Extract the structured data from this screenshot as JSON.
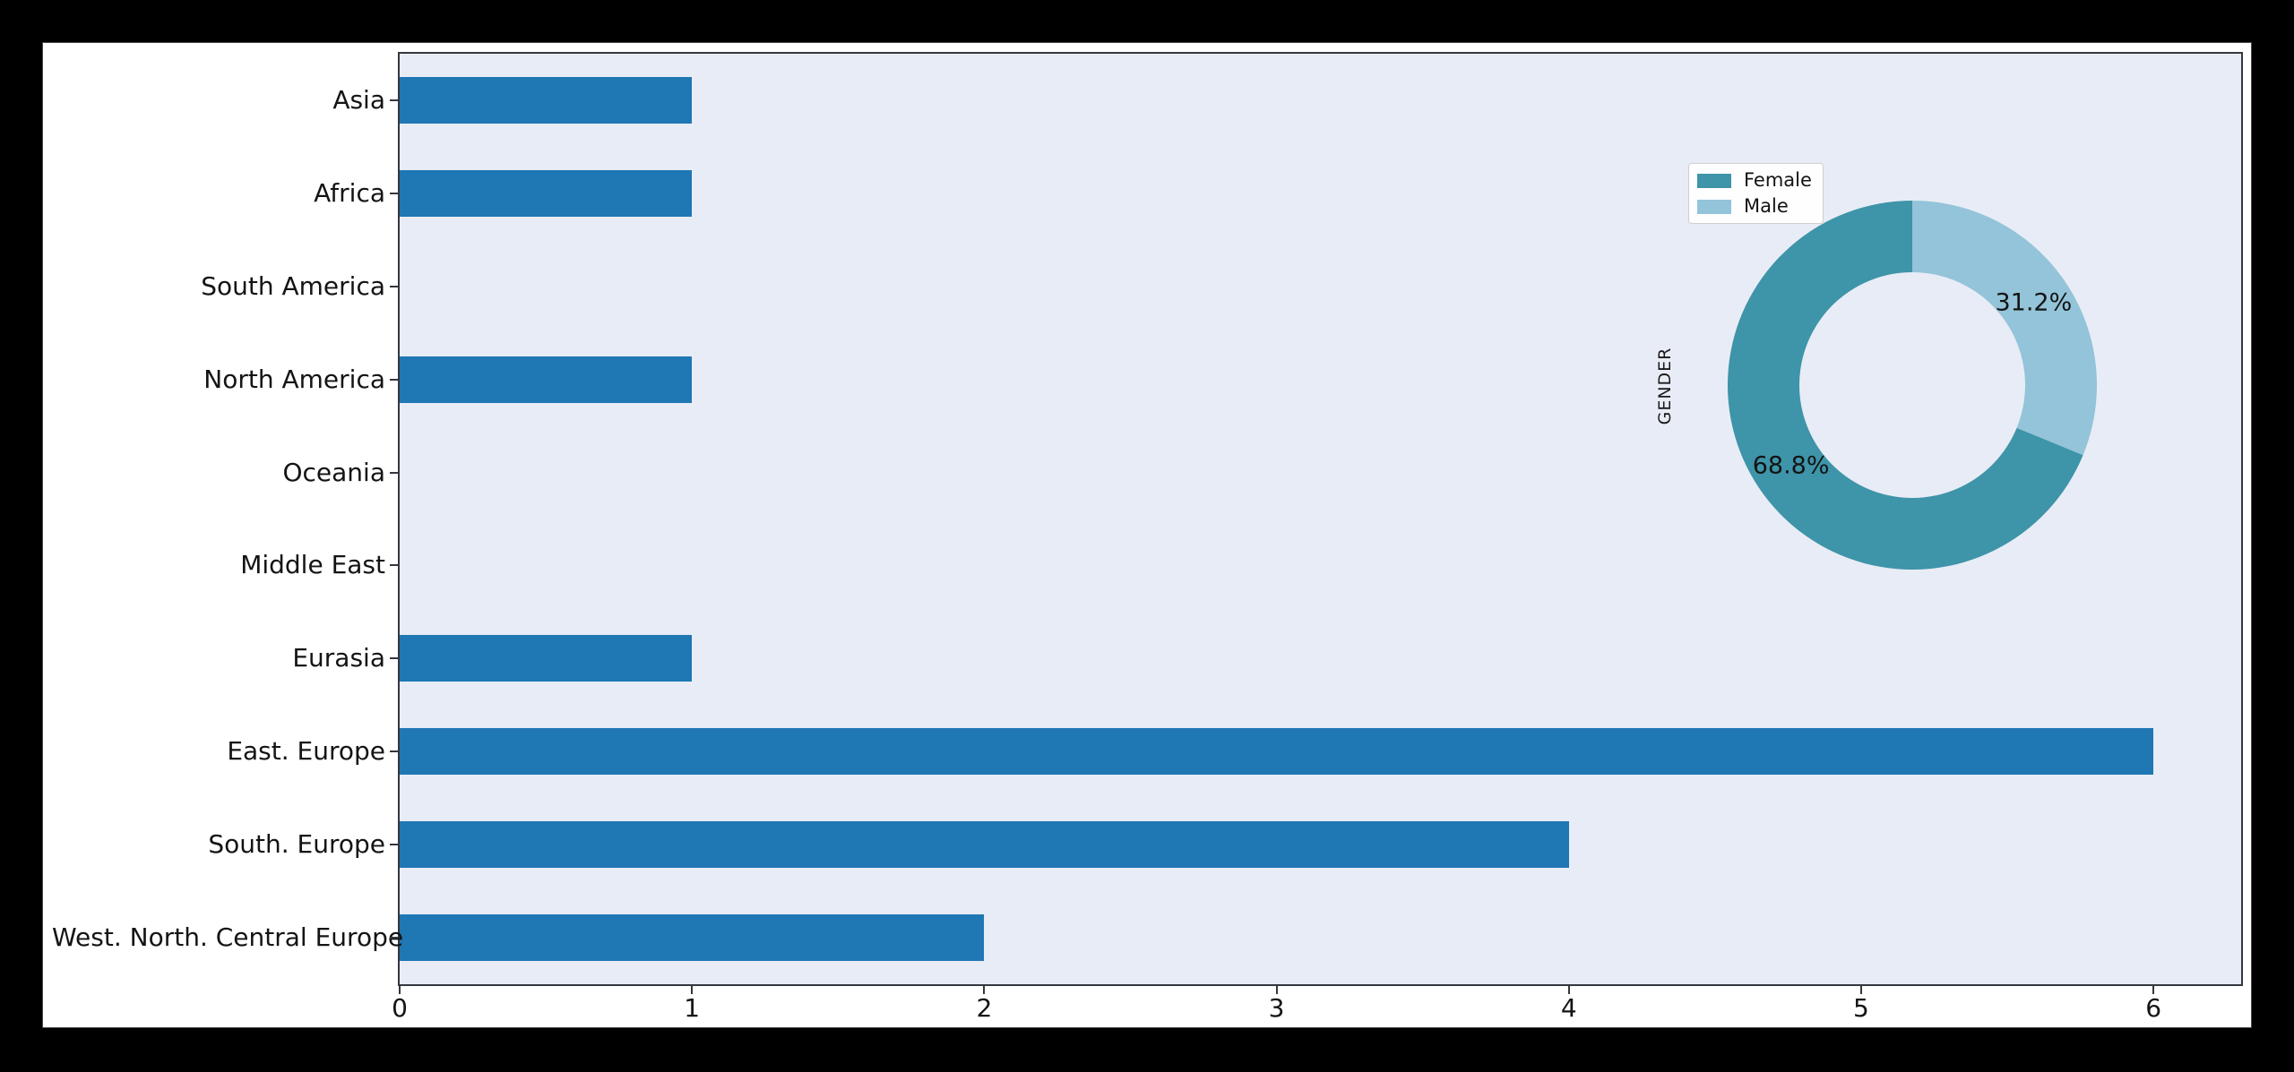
{
  "chart_data": [
    {
      "type": "bar",
      "orientation": "horizontal",
      "title": "",
      "xlabel": "",
      "ylabel": "",
      "categories": [
        "Asia",
        "Africa",
        "South America",
        "North America",
        "Oceania",
        "Middle East",
        "Eurasia",
        "East. Europe",
        "South. Europe",
        "West. North. Central Europe"
      ],
      "values": [
        1,
        1,
        0,
        1,
        0,
        0,
        1,
        6,
        4,
        2
      ],
      "x_ticks": [
        "0",
        "1",
        "2",
        "3",
        "4",
        "5",
        "6"
      ],
      "xlim": [
        0,
        6.3
      ],
      "grid": false,
      "bar_color": "#1f77b4",
      "plot_bg": "#e8ecf6",
      "legend_position": "none"
    },
    {
      "type": "pie",
      "subtype": "donut",
      "title": "",
      "ylabel": "GENDER",
      "labels": [
        "Female",
        "Male"
      ],
      "values_pct": [
        68.8,
        31.2
      ],
      "pct_labels": [
        "68.8%",
        "31.2%"
      ],
      "colors": [
        "#3e94a8",
        "#93c4d9"
      ],
      "start_angle": 90,
      "counterclock": true,
      "hole_ratio": 0.61,
      "legend_position": "upper left"
    }
  ],
  "colors": {
    "canvas_bg": "#000000",
    "figure_bg": "#ffffff",
    "axes_bg": "#e8ecf6",
    "spine": "#34383e",
    "text": "#141414"
  }
}
